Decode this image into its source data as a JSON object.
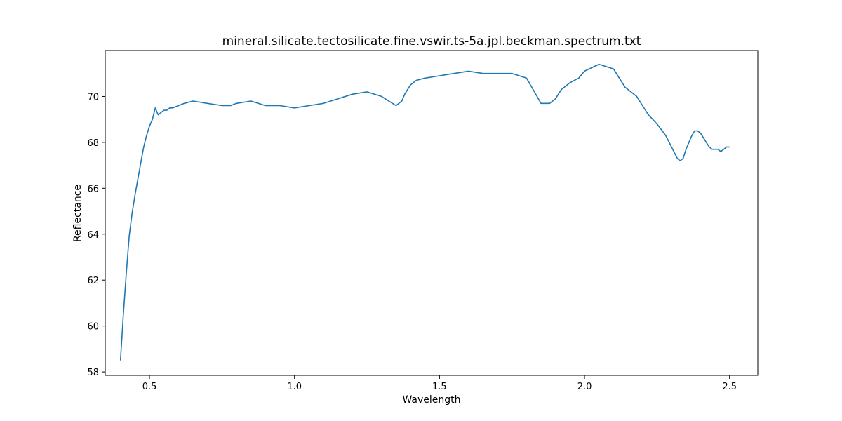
{
  "chart_data": {
    "type": "line",
    "title": "mineral.silicate.tectosilicate.fine.vswir.ts-5a.jpl.beckman.spectrum.txt",
    "xlabel": "Wavelength",
    "ylabel": "Reflectance",
    "xlim": [
      0.3475,
      2.5975
    ],
    "ylim": [
      57.85,
      72.0
    ],
    "xticks": [
      0.5,
      1.0,
      1.5,
      2.0,
      2.5
    ],
    "xtick_labels": [
      "0.5",
      "1.0",
      "1.5",
      "2.0",
      "2.5"
    ],
    "yticks": [
      58,
      60,
      62,
      64,
      66,
      68,
      70
    ],
    "ytick_labels": [
      "58",
      "60",
      "62",
      "64",
      "66",
      "68",
      "70"
    ],
    "grid": false,
    "series": [
      {
        "name": "spectrum",
        "color": "#1f77b4",
        "x": [
          0.4,
          0.41,
          0.42,
          0.43,
          0.44,
          0.45,
          0.46,
          0.47,
          0.48,
          0.49,
          0.5,
          0.51,
          0.52,
          0.53,
          0.54,
          0.55,
          0.56,
          0.57,
          0.58,
          0.6,
          0.62,
          0.65,
          0.7,
          0.75,
          0.78,
          0.8,
          0.85,
          0.9,
          0.95,
          1.0,
          1.05,
          1.1,
          1.15,
          1.2,
          1.25,
          1.3,
          1.35,
          1.37,
          1.38,
          1.39,
          1.4,
          1.42,
          1.45,
          1.5,
          1.55,
          1.6,
          1.65,
          1.7,
          1.75,
          1.8,
          1.85,
          1.88,
          1.9,
          1.92,
          1.95,
          1.98,
          2.0,
          2.05,
          2.1,
          2.12,
          2.14,
          2.16,
          2.18,
          2.2,
          2.22,
          2.25,
          2.28,
          2.3,
          2.32,
          2.33,
          2.34,
          2.35,
          2.36,
          2.37,
          2.38,
          2.39,
          2.4,
          2.41,
          2.42,
          2.43,
          2.44,
          2.45,
          2.46,
          2.47,
          2.48,
          2.49,
          2.5
        ],
        "y": [
          58.5,
          60.5,
          62.3,
          63.9,
          64.9,
          65.7,
          66.4,
          67.1,
          67.8,
          68.3,
          68.7,
          69.0,
          69.5,
          69.2,
          69.3,
          69.4,
          69.4,
          69.5,
          69.5,
          69.6,
          69.7,
          69.8,
          69.7,
          69.6,
          69.6,
          69.7,
          69.8,
          69.6,
          69.6,
          69.5,
          69.6,
          69.7,
          69.9,
          70.1,
          70.2,
          70.0,
          69.6,
          69.8,
          70.1,
          70.3,
          70.5,
          70.7,
          70.8,
          70.9,
          71.0,
          71.1,
          71.0,
          71.0,
          71.0,
          70.8,
          69.7,
          69.7,
          69.9,
          70.3,
          70.6,
          70.8,
          71.1,
          71.4,
          71.2,
          70.8,
          70.4,
          70.2,
          70.0,
          69.6,
          69.2,
          68.8,
          68.3,
          67.8,
          67.3,
          67.2,
          67.3,
          67.7,
          68.0,
          68.3,
          68.5,
          68.5,
          68.4,
          68.2,
          68.0,
          67.8,
          67.7,
          67.7,
          67.7,
          67.6,
          67.7,
          67.8,
          67.8
        ]
      }
    ]
  }
}
